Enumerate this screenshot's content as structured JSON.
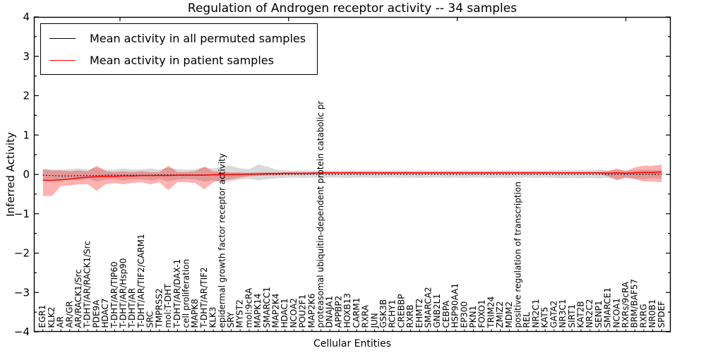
{
  "chart_data": {
    "type": "line",
    "title": "Regulation of Androgen receptor activity -- 34 samples",
    "xlabel": "Cellular Entities",
    "ylabel": "Inferred Activity",
    "ylim": [
      -4,
      4
    ],
    "yticks": [
      4,
      3,
      2,
      1,
      0,
      -1,
      -2,
      -3,
      -4
    ],
    "grid": false,
    "legend_position": "upper left",
    "categories": [
      "EGR1",
      "KLK2",
      "AR",
      "AR/GR",
      "AR/RACK1/Src",
      "T-DHT/AR/RACK1/Src",
      "PDE9A",
      "HDAC7",
      "T-DHT/AR/TIP60",
      "T-DHT/AR/Hsp90",
      "T-DHT/AR",
      "T-DHT/AR/TIF2/CARM1",
      "SRC",
      "TMPRSS2",
      "mol:T-DHT",
      "T-DHT/AR/DAX-1",
      "cell proliferation",
      "MAPK8",
      "T-DHT/AR/TIF2",
      "KLK3",
      "epidermal growth factor receptor activity",
      "SRY",
      "MYST2",
      "mol:9cRA",
      "MAPK14",
      "SMARCC1",
      "MAP2K4",
      "HDAC1",
      "NCOA2",
      "POU2F1",
      "MAP2K6",
      "proteasomal ubiquitin-dependent protein catabolic pr",
      "DNAJA1",
      "APPBP2",
      "HOXB13",
      "CARM1",
      "RXRA",
      "JUN",
      "GSK3B",
      "RCHY1",
      "CREBBP",
      "RXRB",
      "EHMT2",
      "SMARCA2",
      "GNB2L1",
      "CEBPA",
      "HSP90AA1",
      "EP300",
      "PKN1",
      "FOXO1",
      "TRIM24",
      "ZMIZ2",
      "MDM2",
      "positive regulation of transcription",
      "REL",
      "NR2C1",
      "KAT5",
      "GATA2",
      "NR3C1",
      "SIRT1",
      "KAT2B",
      "NR2C2",
      "SENP1",
      "SMARCE1",
      "NCOA1",
      "RXRs/9cRA",
      "BRM/BAF57",
      "RXRG",
      "NR0B1",
      "SPDEF"
    ],
    "series": [
      {
        "name": "Mean activity in all permuted samples",
        "color": "#000000",
        "line_style": "dotted",
        "values": [
          -0.02,
          -0.03,
          -0.04,
          -0.04,
          -0.03,
          -0.03,
          -0.03,
          -0.02,
          -0.02,
          -0.02,
          -0.02,
          -0.02,
          -0.02,
          -0.01,
          -0.01,
          -0.01,
          -0.01,
          -0.01,
          -0.01,
          -0.01,
          -0.01,
          0,
          0,
          0,
          0,
          0,
          0,
          0,
          0,
          0,
          0,
          0,
          0,
          0,
          0,
          0,
          0,
          0,
          0,
          0,
          0,
          0,
          0,
          0,
          0,
          0,
          0,
          0,
          0,
          0,
          0,
          0,
          0,
          0,
          0,
          0,
          0,
          0,
          0,
          0,
          0,
          0,
          0,
          0,
          0,
          0,
          0,
          0,
          0,
          0
        ],
        "band_upper": [
          0.14,
          0.12,
          0.12,
          0.13,
          0.15,
          0.12,
          0.18,
          0.12,
          0.12,
          0.15,
          0.12,
          0.13,
          0.15,
          0.12,
          0.18,
          0.13,
          0.12,
          0.13,
          0.18,
          0.15,
          0.2,
          0.22,
          0.15,
          0.13,
          0.25,
          0.2,
          0.12,
          0.1,
          0.09,
          0.1,
          0.09,
          0.1,
          0.09,
          0.09,
          0.1,
          0.09,
          0.09,
          0.1,
          0.09,
          0.09,
          0.1,
          0.09,
          0.1,
          0.09,
          0.09,
          0.1,
          0.09,
          0.1,
          0.09,
          0.09,
          0.1,
          0.09,
          0.1,
          0.09,
          0.09,
          0.1,
          0.09,
          0.1,
          0.11,
          0.1,
          0.11,
          0.1,
          0.12,
          0.1,
          0.11,
          0.1,
          0.11,
          0.12,
          0.11,
          0.11
        ],
        "band_lower": [
          -0.14,
          -0.12,
          -0.14,
          -0.14,
          -0.15,
          -0.12,
          -0.18,
          -0.13,
          -0.12,
          -0.15,
          -0.12,
          -0.13,
          -0.15,
          -0.12,
          -0.18,
          -0.13,
          -0.12,
          -0.13,
          -0.18,
          -0.15,
          -0.2,
          -0.17,
          -0.13,
          -0.11,
          -0.15,
          -0.12,
          -0.1,
          -0.09,
          -0.08,
          -0.09,
          -0.08,
          -0.09,
          -0.08,
          -0.08,
          -0.09,
          -0.08,
          -0.08,
          -0.09,
          -0.08,
          -0.08,
          -0.09,
          -0.08,
          -0.09,
          -0.08,
          -0.08,
          -0.09,
          -0.08,
          -0.09,
          -0.08,
          -0.08,
          -0.09,
          -0.08,
          -0.09,
          -0.08,
          -0.08,
          -0.09,
          -0.08,
          -0.09,
          -0.1,
          -0.09,
          -0.1,
          -0.09,
          -0.1,
          -0.09,
          -0.12,
          -0.09,
          -0.11,
          -0.12,
          -0.1,
          -0.1
        ],
        "band_color": "rgba(0,0,0,0.15)"
      },
      {
        "name": "Mean activity in patient samples",
        "color": "#ff0000",
        "line_style": "solid",
        "values": [
          -0.15,
          -0.15,
          -0.14,
          -0.12,
          -0.09,
          -0.07,
          -0.06,
          -0.05,
          -0.05,
          -0.04,
          -0.04,
          -0.03,
          -0.03,
          -0.03,
          -0.03,
          -0.02,
          -0.02,
          -0.02,
          -0.02,
          -0.01,
          -0.01,
          0,
          0,
          0.01,
          0.01,
          0.02,
          0.02,
          0.03,
          0.03,
          0.03,
          0.03,
          0.04,
          0.04,
          0.04,
          0.04,
          0.04,
          0.04,
          0.04,
          0.04,
          0.04,
          0.04,
          0.04,
          0.04,
          0.04,
          0.04,
          0.04,
          0.04,
          0.04,
          0.04,
          0.04,
          0.04,
          0.04,
          0.04,
          0.04,
          0.04,
          0.04,
          0.04,
          0.04,
          0.04,
          0.04,
          0.04,
          0.04,
          0.04,
          0.03,
          0.04,
          0.03,
          0.04,
          0.05,
          0.05,
          0.06
        ],
        "band_upper": [
          0.13,
          0.1,
          0.1,
          0.08,
          0.1,
          0.08,
          0.22,
          0.08,
          0.06,
          0.08,
          0.06,
          0.08,
          0.06,
          0.06,
          0.22,
          0.06,
          0.06,
          0.08,
          0.2,
          0.08,
          0.06,
          0.05,
          0.05,
          0.04,
          0.05,
          0.05,
          0.05,
          0.05,
          0.05,
          0.05,
          0.06,
          0.06,
          0.06,
          0.06,
          0.06,
          0.06,
          0.06,
          0.06,
          0.06,
          0.06,
          0.06,
          0.06,
          0.06,
          0.06,
          0.06,
          0.06,
          0.06,
          0.06,
          0.06,
          0.06,
          0.06,
          0.06,
          0.06,
          0.06,
          0.06,
          0.06,
          0.06,
          0.06,
          0.06,
          0.06,
          0.06,
          0.06,
          0.06,
          0.08,
          0.15,
          0.08,
          0.18,
          0.22,
          0.22,
          0.25
        ],
        "band_lower": [
          -0.55,
          -0.55,
          -0.3,
          -0.28,
          -0.25,
          -0.25,
          -0.42,
          -0.25,
          -0.22,
          -0.25,
          -0.22,
          -0.2,
          -0.25,
          -0.2,
          -0.4,
          -0.2,
          -0.2,
          -0.22,
          -0.38,
          -0.2,
          -0.15,
          -0.12,
          -0.08,
          -0.05,
          -0.04,
          -0.03,
          -0.02,
          -0.01,
          -0.01,
          -0.01,
          0,
          0,
          0.01,
          0.01,
          0.01,
          0.01,
          0.01,
          0.01,
          0.01,
          0.01,
          0.01,
          0.01,
          0.01,
          0.01,
          0.01,
          0.01,
          0.01,
          0.01,
          0.01,
          0.01,
          0.01,
          0.01,
          0.01,
          0.01,
          0.01,
          0.01,
          0.01,
          0.01,
          0.01,
          0.01,
          0.01,
          0.01,
          0.01,
          -0.05,
          -0.15,
          -0.08,
          -0.12,
          -0.18,
          -0.18,
          -0.2
        ],
        "band_color": "rgba(255,0,0,0.30)"
      }
    ]
  }
}
